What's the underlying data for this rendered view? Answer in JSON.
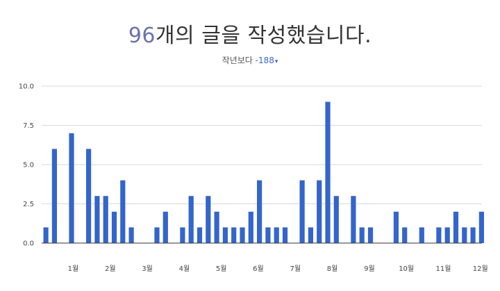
{
  "header": {
    "count": "96",
    "title_rest": "개의 글을 작성했습니다.",
    "compare_label": "작년보다",
    "compare_value": "-188",
    "compare_arrow": "▾"
  },
  "colors": {
    "bar": "#3465cc",
    "count_accent": "#6a73b0",
    "delta": "#3f66c6",
    "grid": "#d9d9d9",
    "axis": "#333333"
  },
  "chart_data": {
    "type": "bar",
    "ylim": [
      0,
      10
    ],
    "yticks": [
      "0.0",
      "2.5",
      "5.0",
      "7.5",
      "10.0"
    ],
    "ytick_values": [
      0,
      2.5,
      5,
      7.5,
      10
    ],
    "xticks": [
      "1월",
      "2월",
      "3월",
      "4월",
      "5월",
      "6월",
      "7월",
      "8월",
      "9월",
      "10월",
      "11월",
      "12월"
    ],
    "grid": true,
    "values": [
      1,
      6,
      0,
      7,
      0,
      6,
      3,
      3,
      2,
      4,
      1,
      0,
      0,
      1,
      2,
      0,
      1,
      3,
      1,
      3,
      2,
      1,
      1,
      1,
      2,
      4,
      1,
      1,
      1,
      0,
      4,
      1,
      4,
      9,
      3,
      0,
      3,
      1,
      1,
      0,
      0,
      2,
      1,
      0,
      1,
      0,
      1,
      1,
      2,
      1,
      1,
      2
    ]
  }
}
